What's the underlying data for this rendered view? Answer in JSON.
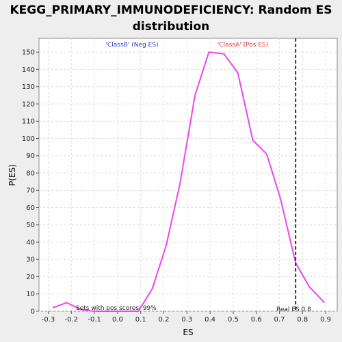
{
  "chart_data": {
    "type": "line",
    "title_line1": "KEGG_PRIMARY_IMMUNODEFICIENCY: Random ES",
    "title_line2": "distribution",
    "xlabel": "ES",
    "ylabel": "P(ES)",
    "xlim": [
      -0.34,
      0.95
    ],
    "ylim": [
      0,
      158
    ],
    "xticks": [
      -0.3,
      -0.2,
      -0.1,
      0.0,
      0.1,
      0.2,
      0.3,
      0.4,
      0.5,
      0.6,
      0.7,
      0.8,
      0.9
    ],
    "xtick_labels": [
      "-0.3",
      "-0.2",
      "-0.1",
      "0.0",
      "0.1",
      "0.2",
      "0.3",
      "0.4",
      "0.5",
      "0.6",
      "0.7",
      "0.8",
      "0.9"
    ],
    "yticks": [
      0,
      10,
      20,
      30,
      40,
      50,
      60,
      70,
      80,
      90,
      100,
      110,
      120,
      130,
      140,
      150
    ],
    "ytick_labels": [
      "0",
      "10",
      "20",
      "30",
      "40",
      "50",
      "60",
      "70",
      "80",
      "90",
      "100",
      "110",
      "120",
      "130",
      "140",
      "150"
    ],
    "grid": true,
    "series": [
      {
        "color": "#ee44ee",
        "x": [
          -0.28,
          -0.22,
          -0.16,
          -0.1,
          -0.03,
          0.03,
          0.09,
          0.15,
          0.21,
          0.27,
          0.335,
          0.395,
          0.46,
          0.52,
          0.585,
          0.645,
          0.705,
          0.77,
          0.83,
          0.895
        ],
        "y": [
          2,
          5,
          1,
          0,
          0,
          0,
          0,
          13,
          38,
          74,
          125,
          150,
          149,
          138,
          99,
          91,
          65,
          28,
          14,
          5
        ]
      }
    ],
    "real_es": 0.77,
    "annotations": {
      "neg_label": "'ClassB' (Neg ES)",
      "pos_label": "'ClassA' (Pos ES)",
      "pos_scores": "Sets with pos scores: 99%",
      "real_es_label": "Real ES 0.8"
    },
    "colors": {
      "neg_label": "#3333cc",
      "pos_label": "#dd3333",
      "line": "#ee44ee",
      "plot_bg": "#ffffff",
      "page_bg": "#eeeeee"
    }
  }
}
